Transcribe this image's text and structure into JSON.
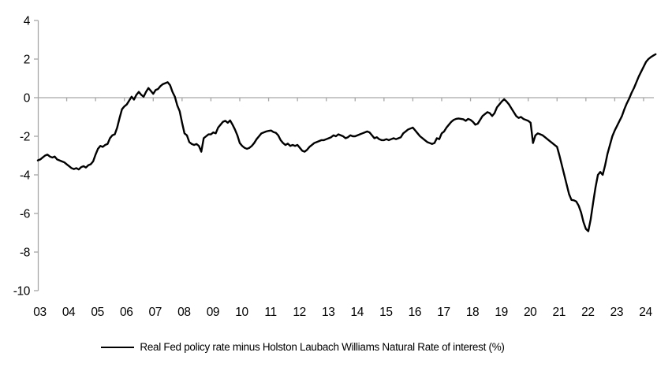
{
  "chart_data": {
    "type": "line",
    "title": "",
    "xlabel": "",
    "ylabel": "",
    "legend_position": "bottom",
    "grid": false,
    "background": "#ffffff",
    "axis_color": "#a6a6a6",
    "zero_line": true,
    "ylim": [
      -10,
      4
    ],
    "y_ticks": [
      4,
      2,
      0,
      -2,
      -4,
      -6,
      -8,
      -10
    ],
    "x_tick_labels": [
      "03",
      "04",
      "05",
      "06",
      "07",
      "08",
      "09",
      "10",
      "11",
      "12",
      "13",
      "14",
      "15",
      "16",
      "17",
      "18",
      "19",
      "20",
      "21",
      "22",
      "23",
      "24"
    ],
    "x_start_year": 2003,
    "points_per_year": 12,
    "series": [
      {
        "name": "Real Fed policy rate minus Holston Laubach Williams Natural Rate of interest (%)",
        "color": "#000000",
        "values": [
          -3.25,
          -3.2,
          -3.1,
          -3.0,
          -2.95,
          -3.05,
          -3.1,
          -3.05,
          -3.2,
          -3.25,
          -3.3,
          -3.35,
          -3.45,
          -3.55,
          -3.65,
          -3.7,
          -3.65,
          -3.72,
          -3.6,
          -3.55,
          -3.62,
          -3.5,
          -3.45,
          -3.3,
          -2.95,
          -2.65,
          -2.5,
          -2.55,
          -2.45,
          -2.4,
          -2.1,
          -1.95,
          -1.9,
          -1.55,
          -1.05,
          -0.6,
          -0.45,
          -0.35,
          -0.15,
          0.05,
          -0.1,
          0.15,
          0.3,
          0.15,
          0.05,
          0.3,
          0.5,
          0.35,
          0.2,
          0.4,
          0.45,
          0.6,
          0.7,
          0.75,
          0.8,
          0.65,
          0.3,
          0.05,
          -0.4,
          -0.7,
          -1.3,
          -1.85,
          -1.95,
          -2.3,
          -2.4,
          -2.45,
          -2.4,
          -2.5,
          -2.8,
          -2.1,
          -2.0,
          -1.9,
          -1.9,
          -1.8,
          -1.85,
          -1.55,
          -1.4,
          -1.25,
          -1.2,
          -1.3,
          -1.18,
          -1.4,
          -1.65,
          -1.95,
          -2.35,
          -2.5,
          -2.6,
          -2.65,
          -2.6,
          -2.5,
          -2.35,
          -2.15,
          -2.0,
          -1.85,
          -1.8,
          -1.75,
          -1.72,
          -1.7,
          -1.78,
          -1.82,
          -1.95,
          -2.2,
          -2.35,
          -2.45,
          -2.38,
          -2.5,
          -2.45,
          -2.5,
          -2.45,
          -2.6,
          -2.75,
          -2.8,
          -2.7,
          -2.55,
          -2.45,
          -2.35,
          -2.3,
          -2.25,
          -2.2,
          -2.2,
          -2.15,
          -2.1,
          -2.05,
          -1.95,
          -2.0,
          -1.9,
          -1.95,
          -2.0,
          -2.1,
          -2.05,
          -1.95,
          -2.0,
          -2.0,
          -1.95,
          -1.9,
          -1.85,
          -1.8,
          -1.75,
          -1.8,
          -1.95,
          -2.1,
          -2.05,
          -2.15,
          -2.2,
          -2.2,
          -2.15,
          -2.2,
          -2.15,
          -2.1,
          -2.15,
          -2.1,
          -2.05,
          -1.85,
          -1.75,
          -1.65,
          -1.6,
          -1.55,
          -1.7,
          -1.85,
          -2.0,
          -2.1,
          -2.2,
          -2.3,
          -2.35,
          -2.4,
          -2.35,
          -2.1,
          -2.15,
          -1.85,
          -1.75,
          -1.55,
          -1.4,
          -1.25,
          -1.15,
          -1.1,
          -1.08,
          -1.1,
          -1.12,
          -1.2,
          -1.1,
          -1.15,
          -1.25,
          -1.4,
          -1.35,
          -1.15,
          -0.95,
          -0.85,
          -0.75,
          -0.8,
          -0.95,
          -0.8,
          -0.5,
          -0.35,
          -0.2,
          -0.08,
          -0.2,
          -0.35,
          -0.55,
          -0.75,
          -0.95,
          -1.05,
          -1.0,
          -1.1,
          -1.15,
          -1.2,
          -1.3,
          -2.35,
          -1.95,
          -1.85,
          -1.9,
          -1.95,
          -2.05,
          -2.15,
          -2.25,
          -2.35,
          -2.45,
          -2.55,
          -3.0,
          -3.5,
          -4.0,
          -4.5,
          -5.0,
          -5.3,
          -5.32,
          -5.38,
          -5.6,
          -5.95,
          -6.45,
          -6.8,
          -6.92,
          -6.3,
          -5.45,
          -4.65,
          -4.0,
          -3.85,
          -4.0,
          -3.5,
          -2.9,
          -2.45,
          -2.0,
          -1.7,
          -1.45,
          -1.2,
          -0.95,
          -0.6,
          -0.3,
          -0.05,
          0.25,
          0.5,
          0.8,
          1.1,
          1.35,
          1.6,
          1.85,
          2.0,
          2.1,
          2.18,
          2.25
        ]
      }
    ]
  },
  "legend": {
    "label": "Real Fed policy rate minus Holston Laubach Williams Natural Rate of interest (%)"
  }
}
